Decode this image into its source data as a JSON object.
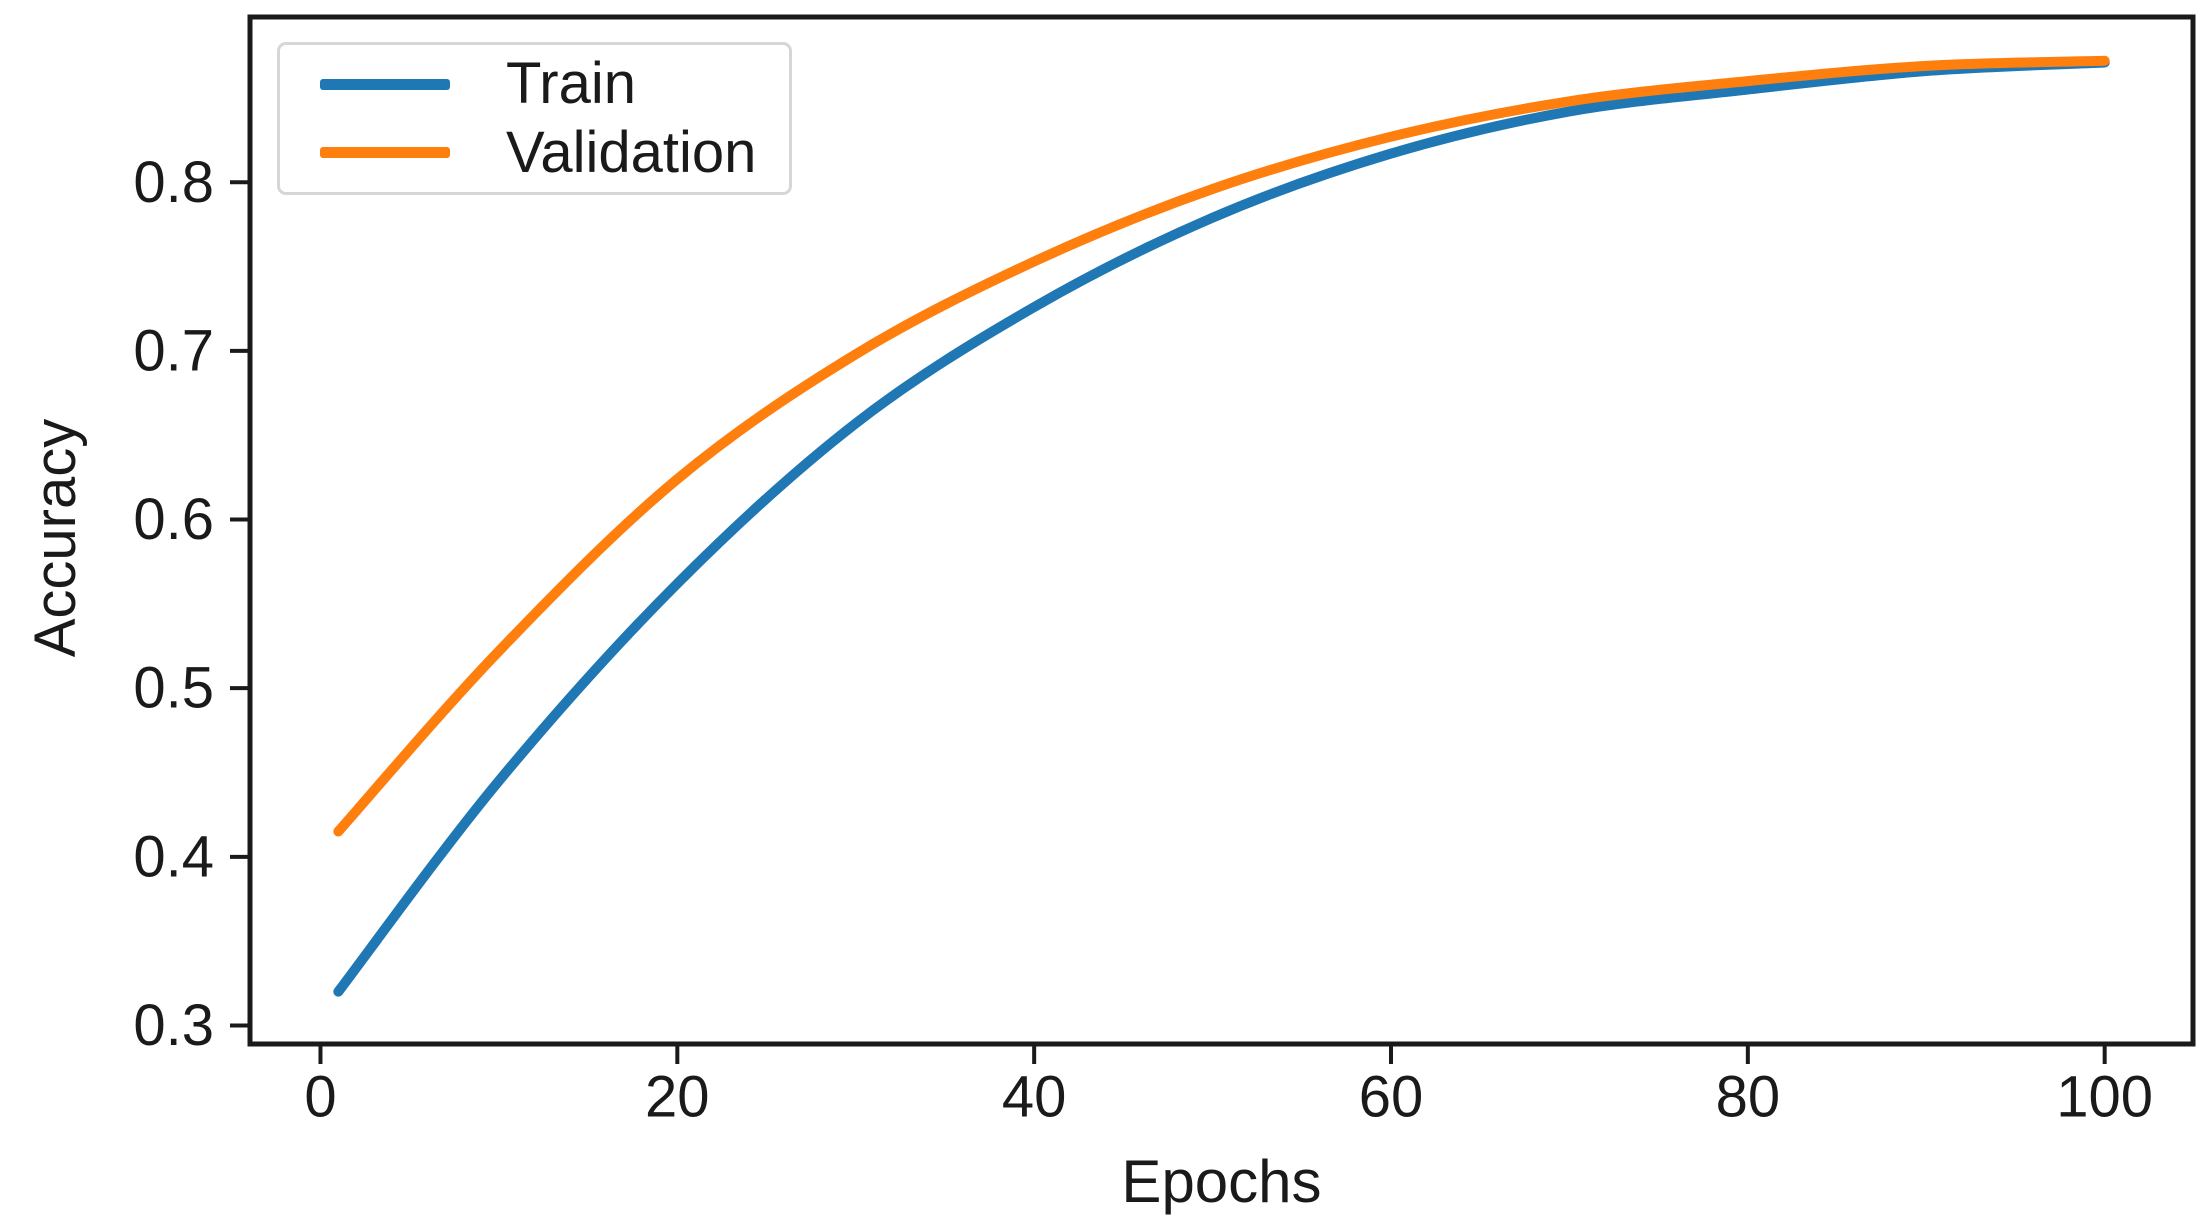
{
  "chart_data": {
    "type": "line",
    "title": "",
    "xlabel": "Epochs",
    "ylabel": "Accuracy",
    "x": [
      1,
      10,
      20,
      30,
      40,
      50,
      60,
      70,
      80,
      90,
      100
    ],
    "series": [
      {
        "name": "Train",
        "color": "#1f77b4",
        "values": [
          0.32,
          0.445,
          0.562,
          0.657,
          0.726,
          0.779,
          0.817,
          0.842,
          0.855,
          0.866,
          0.871
        ]
      },
      {
        "name": "Validation",
        "color": "#ff7f0e",
        "values": [
          0.415,
          0.522,
          0.624,
          0.698,
          0.753,
          0.796,
          0.827,
          0.848,
          0.86,
          0.869,
          0.872
        ]
      }
    ],
    "xlim": [
      -3.95,
      104.95
    ],
    "ylim": [
      0.289,
      0.898
    ],
    "xticks": [
      0,
      20,
      40,
      60,
      80,
      100
    ],
    "xtick_labels": [
      "0",
      "20",
      "40",
      "60",
      "80",
      "100"
    ],
    "yticks": [
      0.3,
      0.4,
      0.5,
      0.6,
      0.7,
      0.8
    ],
    "ytick_labels": [
      "0.3",
      "0.4",
      "0.5",
      "0.6",
      "0.7",
      "0.8"
    ],
    "grid": false,
    "legend_position": "upper left",
    "line_width": 10,
    "axis_color": "#1a1a1a",
    "background": "#ffffff"
  }
}
